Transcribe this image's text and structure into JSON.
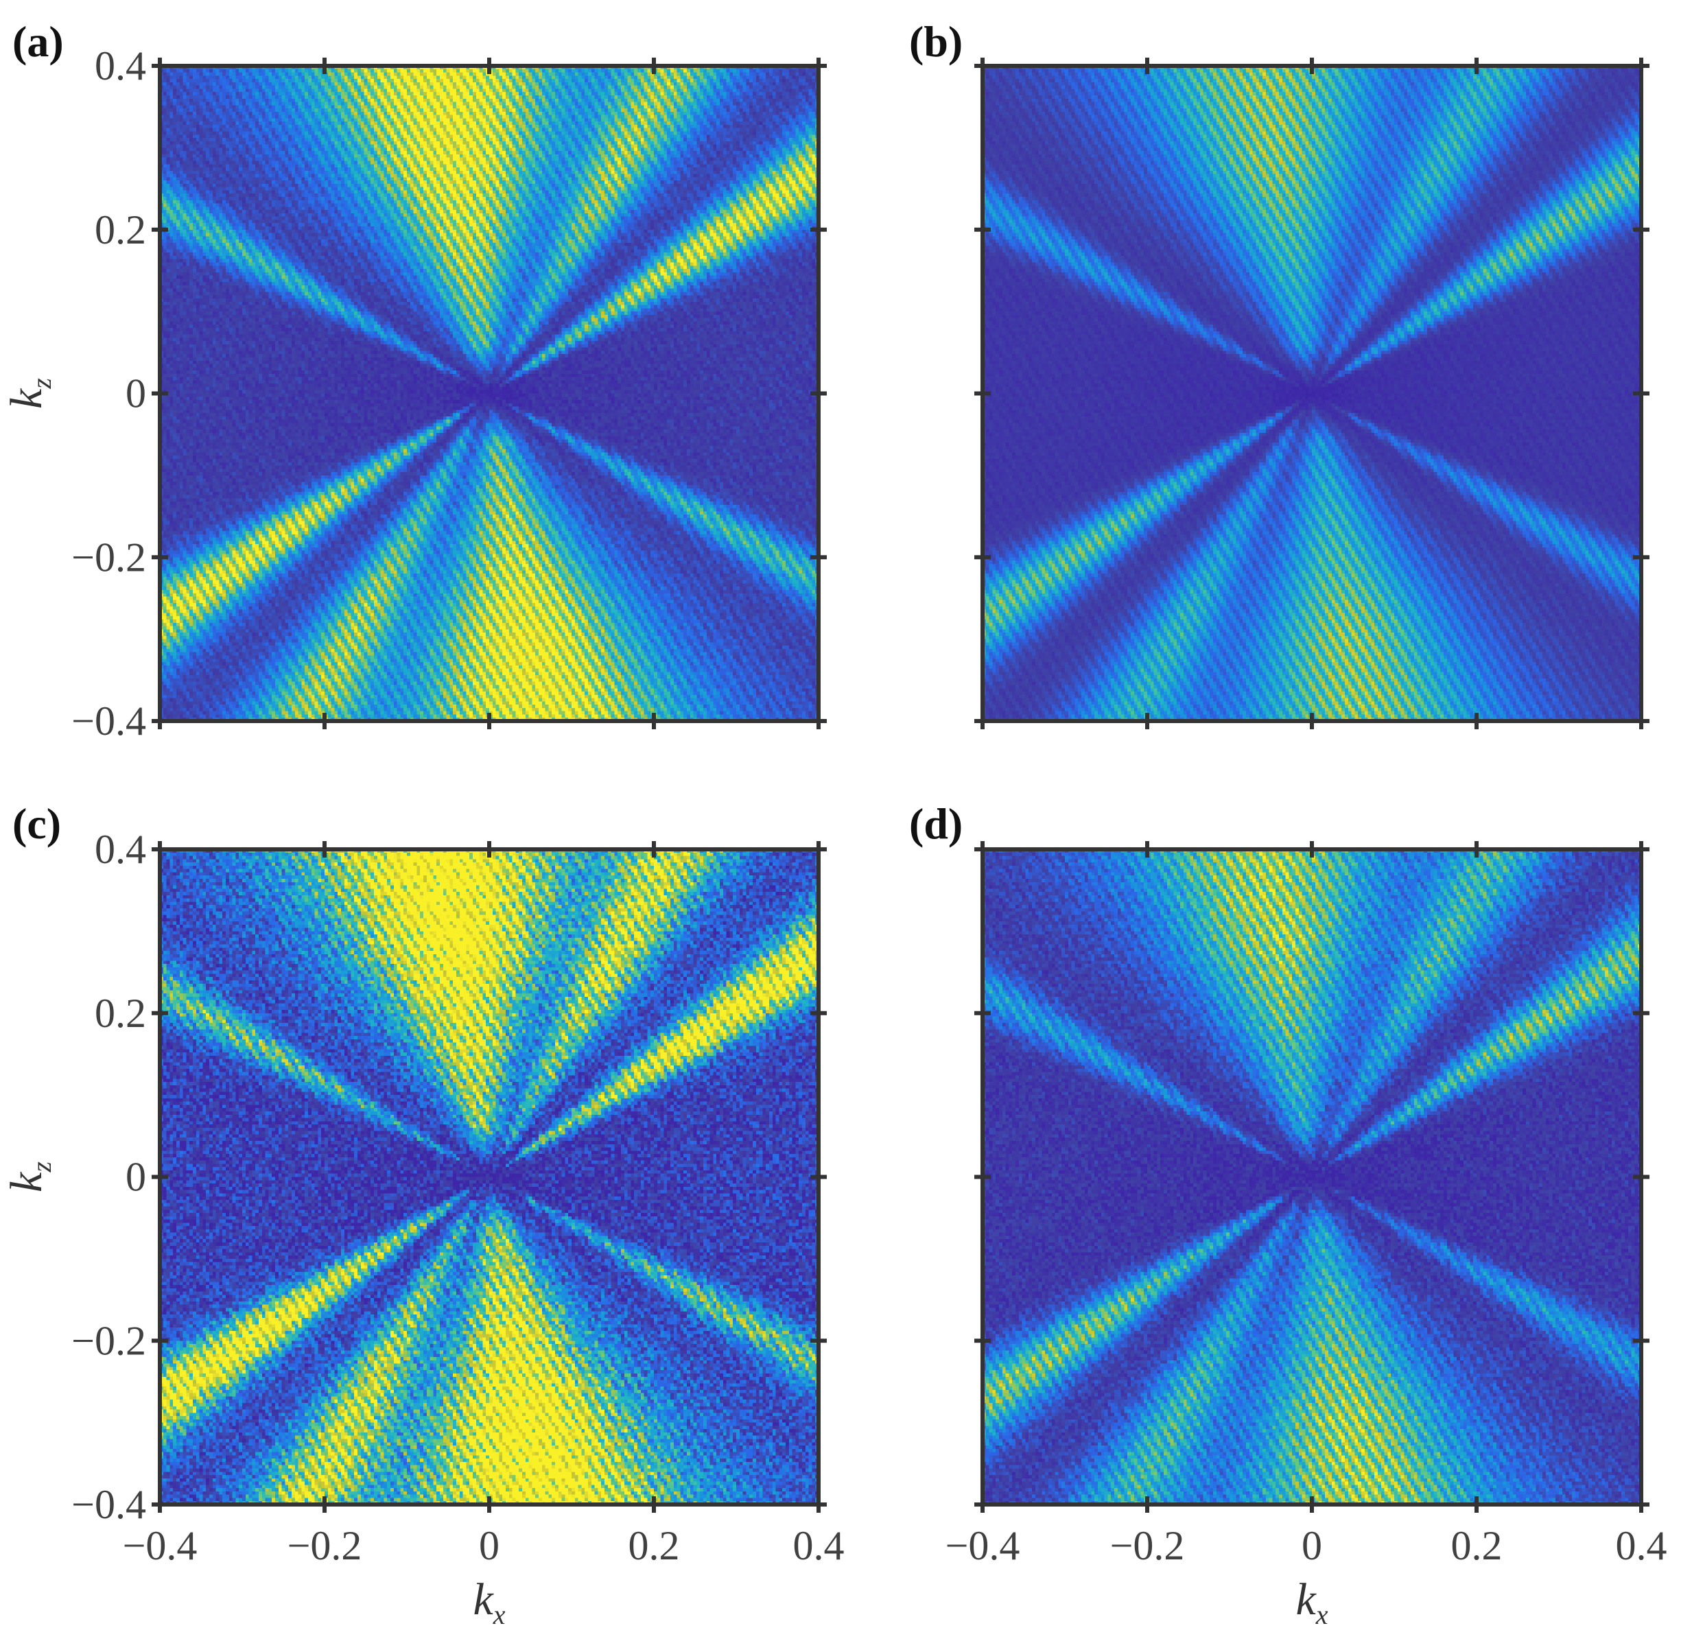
{
  "chart_data": [
    {
      "type": "heatmap",
      "panel_label": "(a)",
      "xlabel": "",
      "ylabel": "k_z",
      "xlim": [
        -0.4,
        0.4
      ],
      "ylim": [
        -0.4,
        0.4
      ],
      "x_ticks": [
        -0.4,
        -0.2,
        0,
        0.2,
        0.4
      ],
      "y_ticks": [
        0.4,
        0.2,
        0,
        -0.2,
        -0.4
      ],
      "x_tick_labels": [],
      "y_tick_labels": [
        "0.4",
        "0.2",
        "0",
        "−0.2",
        "−0.4"
      ],
      "colormap": "parula",
      "intensity": 1.0,
      "noise": 0.12
    },
    {
      "type": "heatmap",
      "panel_label": "(b)",
      "xlabel": "",
      "ylabel": "",
      "xlim": [
        -0.4,
        0.4
      ],
      "ylim": [
        -0.4,
        0.4
      ],
      "x_ticks": [
        -0.4,
        -0.2,
        0,
        0.2,
        0.4
      ],
      "y_ticks": [
        0.4,
        0.2,
        0,
        -0.2,
        -0.4
      ],
      "x_tick_labels": [],
      "y_tick_labels": [],
      "colormap": "parula",
      "intensity": 0.72,
      "noise": 0.08
    },
    {
      "type": "heatmap",
      "panel_label": "(c)",
      "xlabel": "k_x",
      "ylabel": "k_z",
      "xlim": [
        -0.4,
        0.4
      ],
      "ylim": [
        -0.4,
        0.4
      ],
      "x_ticks": [
        -0.4,
        -0.2,
        0,
        0.2,
        0.4
      ],
      "y_ticks": [
        0.4,
        0.2,
        0,
        -0.2,
        -0.4
      ],
      "x_tick_labels": [
        "−0.4",
        "−0.2",
        "0",
        "0.2",
        "0.4"
      ],
      "y_tick_labels": [
        "0.4",
        "0.2",
        "0",
        "−0.2",
        "−0.4"
      ],
      "colormap": "parula",
      "intensity": 1.15,
      "noise": 0.3
    },
    {
      "type": "heatmap",
      "panel_label": "(d)",
      "xlabel": "k_x",
      "ylabel": "",
      "xlim": [
        -0.4,
        0.4
      ],
      "ylim": [
        -0.4,
        0.4
      ],
      "x_ticks": [
        -0.4,
        -0.2,
        0,
        0.2,
        0.4
      ],
      "y_ticks": [
        0.4,
        0.2,
        0,
        -0.2,
        -0.4
      ],
      "x_tick_labels": [
        "−0.4",
        "−0.2",
        "0",
        "0.2",
        "0.4"
      ],
      "y_tick_labels": [],
      "colormap": "parula",
      "intensity": 0.78,
      "noise": 0.22
    }
  ],
  "colors": {
    "frame": "#333333",
    "low": "#3e3f9a",
    "mid": "#2aa7d8",
    "high": "#f5e43a"
  }
}
